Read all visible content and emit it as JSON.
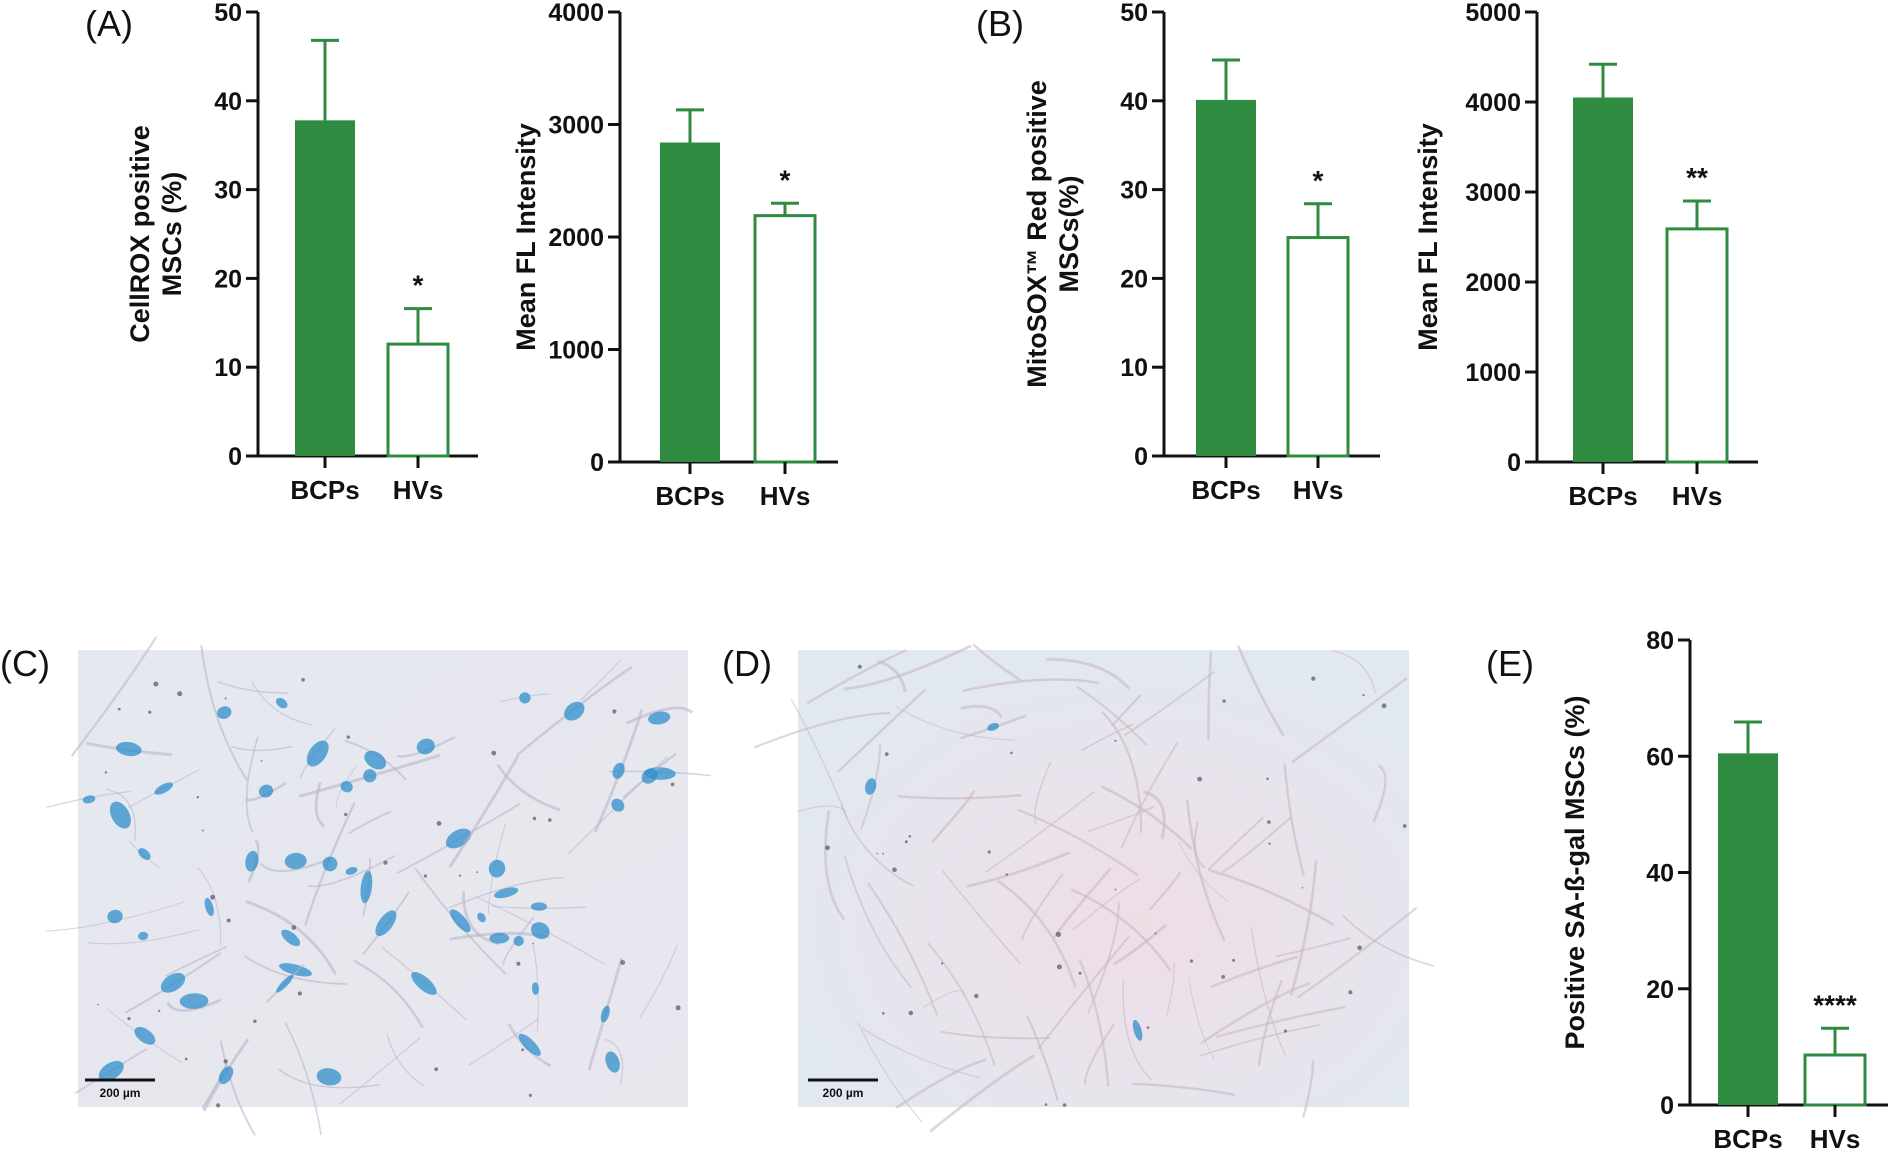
{
  "panels": {
    "A": "(A)",
    "B": "(B)",
    "C": "(C)",
    "D": "(D)",
    "E": "(E)"
  },
  "colors": {
    "bcp": "#2e8b40",
    "axis": "#111111"
  },
  "micrographs": [
    {
      "panel": "C",
      "scale_bar": "200 µm",
      "stain": "blue-heavy"
    },
    {
      "panel": "D",
      "scale_bar": "200 µm",
      "stain": "pink-light"
    }
  ],
  "chart_data": [
    {
      "id": "A1",
      "type": "bar",
      "categories": [
        "BCPs",
        "HVs"
      ],
      "values": [
        37.8,
        12.6
      ],
      "errors": [
        9.0,
        4.0
      ],
      "significance": [
        "",
        "*"
      ],
      "ylabel": [
        "CellROX positive",
        "MSCs (%)"
      ],
      "ylim": [
        0,
        50
      ],
      "yticks": [
        0,
        10,
        20,
        30,
        40,
        50
      ]
    },
    {
      "id": "A2",
      "type": "bar",
      "categories": [
        "BCPs",
        "HVs"
      ],
      "values": [
        2840,
        2190
      ],
      "errors": [
        290,
        110
      ],
      "significance": [
        "",
        "*"
      ],
      "ylabel": [
        "Mean FL Intensity"
      ],
      "ylim": [
        0,
        4000
      ],
      "yticks": [
        0,
        1000,
        2000,
        3000,
        4000
      ]
    },
    {
      "id": "B1",
      "type": "bar",
      "categories": [
        "BCPs",
        "HVs"
      ],
      "values": [
        40.1,
        24.6
      ],
      "errors": [
        4.5,
        3.8
      ],
      "significance": [
        "",
        "*"
      ],
      "ylabel": [
        "MitoSOX™ Red positive",
        "MSCs(%)"
      ],
      "ylim": [
        0,
        50
      ],
      "yticks": [
        0,
        10,
        20,
        30,
        40,
        50
      ]
    },
    {
      "id": "B2",
      "type": "bar",
      "categories": [
        "BCPs",
        "HVs"
      ],
      "values": [
        4050,
        2590
      ],
      "errors": [
        370,
        310
      ],
      "significance": [
        "",
        "**"
      ],
      "ylabel": [
        "Mean FL Intensity"
      ],
      "ylim": [
        0,
        5000
      ],
      "yticks": [
        0,
        1000,
        2000,
        3000,
        4000,
        5000
      ]
    },
    {
      "id": "E",
      "type": "bar",
      "categories": [
        "BCPs",
        "HVs"
      ],
      "values": [
        60.5,
        8.6
      ],
      "errors": [
        5.4,
        4.6
      ],
      "significance": [
        "",
        "****"
      ],
      "ylabel": [
        "Positive SA-ß-gal MSCs (%)"
      ],
      "ylim": [
        0,
        80
      ],
      "yticks": [
        0,
        20,
        40,
        60,
        80
      ]
    }
  ]
}
